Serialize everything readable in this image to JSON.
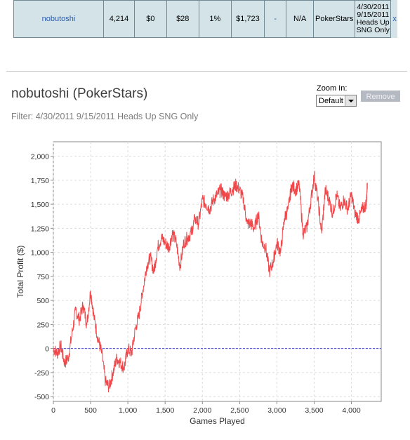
{
  "stats_row": {
    "player": "nobutoshi",
    "games": "4,214",
    "rake": "$0",
    "avg_buyin": "$28",
    "roi": "1%",
    "profit": "$1,723",
    "dash": "-",
    "na": "N/A",
    "site": "PokerStars",
    "filter_lines": [
      "4/30/2011",
      "9/15/2011",
      "Heads Up",
      "SNG Only"
    ],
    "close": "x"
  },
  "header": {
    "title": "nobutoshi (PokerStars)",
    "filter": "Filter: 4/30/2011 9/15/2011 Heads Up SNG Only"
  },
  "controls": {
    "zoom_label": "Zoom In:",
    "zoom_value": "Default",
    "remove_label": "Remove"
  },
  "chart_data": {
    "type": "line",
    "xlabel": "Games Played",
    "ylabel": "Total Profit ($)",
    "xlim": [
      0,
      4400
    ],
    "ylim": [
      -550,
      2150
    ],
    "x_ticks": [
      0,
      500,
      1000,
      1500,
      2000,
      2500,
      3000,
      3500,
      4000
    ],
    "x_tick_labels": [
      "0",
      "500",
      "1,000",
      "1,500",
      "2,000",
      "2,500",
      "3,000",
      "3,500",
      "4,000"
    ],
    "y_ticks": [
      -500,
      -250,
      0,
      250,
      500,
      750,
      1000,
      1250,
      1500,
      1750,
      2000
    ],
    "y_tick_labels": [
      "-500",
      "-250",
      "0",
      "250",
      "500",
      "750",
      "1,000",
      "1,250",
      "1,500",
      "1,750",
      "2,000"
    ],
    "grid": true,
    "series": [
      {
        "color": "#f0474a",
        "x": [
          0,
          50,
          100,
          150,
          200,
          250,
          300,
          350,
          400,
          450,
          500,
          550,
          600,
          650,
          700,
          750,
          800,
          850,
          900,
          950,
          1000,
          1050,
          1100,
          1150,
          1200,
          1250,
          1300,
          1350,
          1400,
          1450,
          1500,
          1550,
          1600,
          1650,
          1700,
          1750,
          1800,
          1850,
          1900,
          1950,
          2000,
          2050,
          2100,
          2150,
          2200,
          2250,
          2300,
          2350,
          2400,
          2450,
          2500,
          2550,
          2600,
          2650,
          2700,
          2750,
          2800,
          2850,
          2900,
          2950,
          3000,
          3050,
          3100,
          3150,
          3200,
          3250,
          3300,
          3350,
          3400,
          3450,
          3500,
          3550,
          3600,
          3650,
          3700,
          3750,
          3800,
          3850,
          3900,
          3950,
          4000,
          4050,
          4100,
          4150,
          4200,
          4214
        ],
        "y": [
          0,
          -50,
          30,
          -150,
          -100,
          150,
          400,
          300,
          450,
          250,
          600,
          300,
          100,
          -50,
          -350,
          -400,
          -250,
          -100,
          -150,
          -200,
          0,
          -50,
          200,
          350,
          600,
          850,
          950,
          800,
          1050,
          1150,
          1100,
          1050,
          1200,
          1100,
          850,
          1100,
          1150,
          1200,
          1350,
          1300,
          1550,
          1500,
          1450,
          1550,
          1600,
          1650,
          1580,
          1600,
          1650,
          1700,
          1650,
          1550,
          1300,
          1300,
          1250,
          1400,
          1100,
          1050,
          800,
          900,
          1100,
          1000,
          1350,
          1450,
          1700,
          1650,
          1700,
          1200,
          1250,
          1500,
          1800,
          1550,
          1200,
          1650,
          1550,
          1400,
          1600,
          1450,
          1550,
          1450,
          1600,
          1400,
          1350,
          1450,
          1500,
          1723
        ]
      }
    ]
  }
}
